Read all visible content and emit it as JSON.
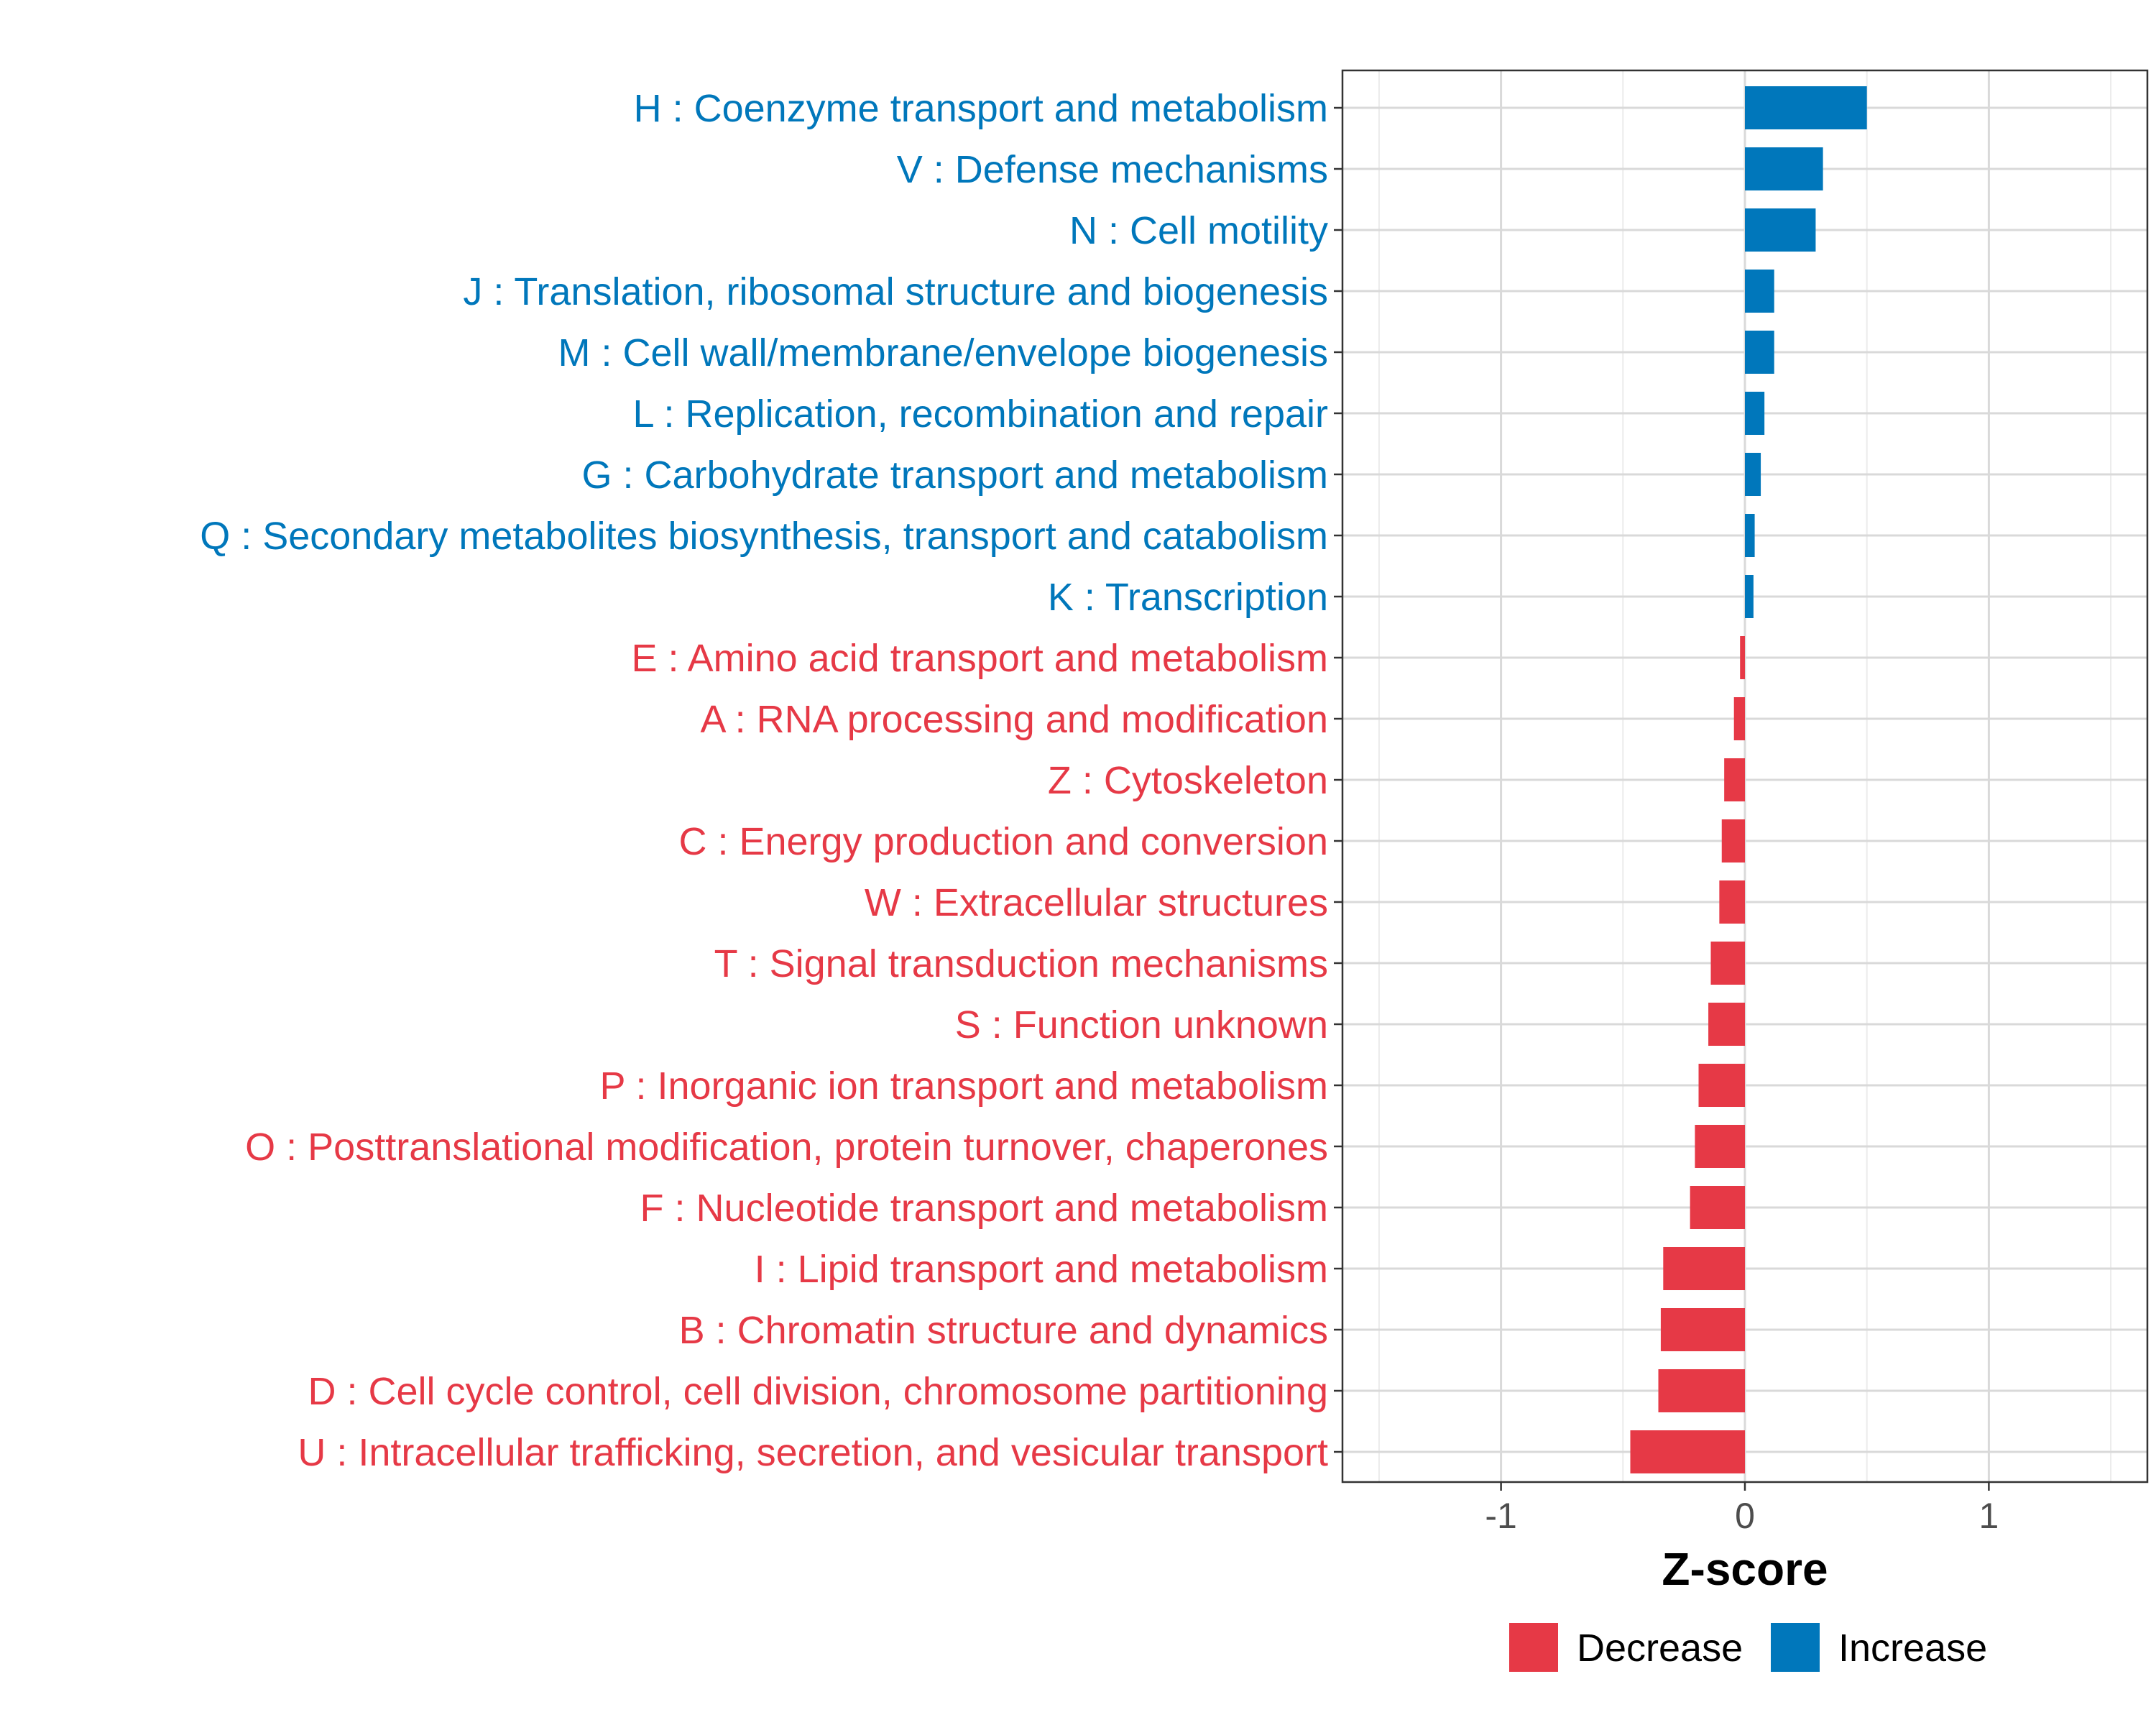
{
  "chart_data": {
    "type": "bar",
    "orientation": "horizontal",
    "title": "",
    "xlabel": "Z-score",
    "ylabel": "",
    "xlim": [
      -1.65,
      1.65
    ],
    "x_ticks": [
      -1,
      0,
      1
    ],
    "x_tick_labels": [
      "-1",
      "0",
      "1"
    ],
    "grid": true,
    "colors": {
      "Decrease": "#E63946",
      "Increase": "#0077BB"
    },
    "legend": {
      "placement": "bottom",
      "entries": [
        {
          "label": "Decrease",
          "color": "#E63946"
        },
        {
          "label": "Increase",
          "color": "#0077BB"
        }
      ]
    },
    "categories": [
      "H : Coenzyme transport and metabolism",
      "V : Defense mechanisms",
      "N : Cell motility",
      "J : Translation, ribosomal structure and biogenesis",
      "M : Cell wall/membrane/envelope biogenesis",
      "L : Replication, recombination and repair",
      "G : Carbohydrate transport and metabolism",
      "Q : Secondary metabolites biosynthesis, transport and catabolism",
      "K : Transcription",
      "E : Amino acid transport and metabolism",
      "A : RNA processing and modification",
      "Z : Cytoskeleton",
      "C : Energy production and conversion",
      "W : Extracellular structures",
      "T : Signal transduction mechanisms",
      "S : Function unknown",
      "P : Inorganic ion transport and metabolism",
      "O : Posttranslational modification, protein turnover, chaperones",
      "F : Nucleotide transport and metabolism",
      "I : Lipid transport and metabolism",
      "B : Chromatin structure and dynamics",
      "D : Cell cycle control, cell division, chromosome partitioning",
      "U : Intracellular trafficking, secretion, and vesicular transport"
    ],
    "values": [
      0.5,
      0.32,
      0.29,
      0.12,
      0.12,
      0.08,
      0.065,
      0.04,
      0.035,
      -0.02,
      -0.045,
      -0.085,
      -0.095,
      -0.105,
      -0.14,
      -0.15,
      -0.19,
      -0.205,
      -0.225,
      -0.335,
      -0.345,
      -0.355,
      -0.47
    ],
    "groups": [
      "Increase",
      "Increase",
      "Increase",
      "Increase",
      "Increase",
      "Increase",
      "Increase",
      "Increase",
      "Increase",
      "Decrease",
      "Decrease",
      "Decrease",
      "Decrease",
      "Decrease",
      "Decrease",
      "Decrease",
      "Decrease",
      "Decrease",
      "Decrease",
      "Decrease",
      "Decrease",
      "Decrease",
      "Decrease"
    ]
  }
}
